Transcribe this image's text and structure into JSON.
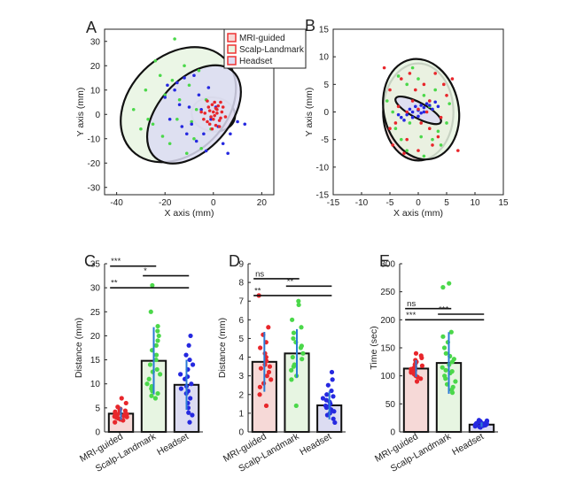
{
  "chart_data": [
    {
      "panel": "A",
      "type": "scatter",
      "xlabel": "X axis (mm)",
      "ylabel": "Y axis (mm)",
      "xlim": [
        -45,
        25
      ],
      "ylim": [
        -33,
        35
      ],
      "xticks": [
        -40,
        -20,
        0,
        20
      ],
      "yticks": [
        -30,
        -20,
        -10,
        0,
        10,
        20,
        30
      ],
      "legend": {
        "position": "top-right",
        "entries": [
          "MRI-guided",
          "Scalp-Landmark",
          "Headset"
        ]
      },
      "series": [
        {
          "name": "MRI-guided",
          "color": "#e8262b",
          "fill": "#f6d9d7",
          "ellipse": {
            "cx": 0,
            "cy": 0,
            "rx": 9,
            "ry": 7,
            "angle": 8
          },
          "points": [
            [
              0.5,
              -0.5
            ],
            [
              1.5,
              2
            ],
            [
              -1.5,
              1.5
            ],
            [
              2.5,
              -2.5
            ],
            [
              -2.5,
              -3
            ],
            [
              3.5,
              1
            ],
            [
              -0.5,
              4
            ],
            [
              1,
              -4.5
            ],
            [
              -3.5,
              0.5
            ],
            [
              2,
              3.5
            ],
            [
              0,
              -2
            ],
            [
              -1,
              -1
            ],
            [
              3,
              -1.5
            ],
            [
              -2,
              3
            ],
            [
              1.5,
              0.5
            ],
            [
              4,
              3
            ],
            [
              -4,
              -2
            ],
            [
              0.5,
              5
            ],
            [
              2.5,
              -5
            ],
            [
              -1.5,
              -4
            ],
            [
              5,
              -1
            ],
            [
              -5,
              1
            ],
            [
              1,
              2.5
            ],
            [
              -0.5,
              -6
            ],
            [
              3,
              5
            ],
            [
              -2.5,
              5.5
            ],
            [
              0,
              1
            ]
          ]
        },
        {
          "name": "Scalp-Landmark",
          "color": "#4bd84a",
          "fill": "#e7f5e2",
          "ellipse": {
            "cx": -14.5,
            "cy": 4,
            "rx": 27,
            "ry": 20,
            "angle": -45
          },
          "points": [
            [
              -16,
              31
            ],
            [
              -28,
              10
            ],
            [
              -33,
              2
            ],
            [
              -25,
              -4
            ],
            [
              -22,
              16
            ],
            [
              -15,
              -2
            ],
            [
              -10,
              12
            ],
            [
              -8,
              -10
            ],
            [
              -20,
              8
            ],
            [
              -5,
              -14
            ],
            [
              -12,
              20
            ],
            [
              -30,
              -6
            ],
            [
              -18,
              -12
            ],
            [
              -6,
              18
            ],
            [
              -3,
              6
            ],
            [
              -24,
              22
            ],
            [
              -14,
              6
            ],
            [
              -9,
              -3
            ],
            [
              -27,
              -2
            ],
            [
              -21,
              -9
            ],
            [
              -11,
              -16
            ],
            [
              -1,
              -6
            ],
            [
              -17,
              14
            ],
            [
              -7,
              2
            ]
          ]
        },
        {
          "name": "Headset",
          "color": "#2528e0",
          "fill": "#dcdcf2",
          "ellipse": {
            "cx": -8,
            "cy": 0,
            "rx": 24,
            "ry": 14.5,
            "angle": -48
          },
          "points": [
            [
              -20,
              7
            ],
            [
              -16,
              10
            ],
            [
              -12,
              15
            ],
            [
              -9,
              -4
            ],
            [
              -6,
              8
            ],
            [
              -4,
              -8
            ],
            [
              -2,
              11
            ],
            [
              -14,
              4
            ],
            [
              -18,
              -2
            ],
            [
              -10,
              3
            ],
            [
              -7,
              -11
            ],
            [
              -3,
              -15
            ],
            [
              2,
              -5
            ],
            [
              4,
              -12
            ],
            [
              7,
              -8
            ],
            [
              10,
              -3
            ],
            [
              13,
              -4
            ],
            [
              -11,
              -8
            ],
            [
              -5,
              2
            ],
            [
              -15,
              13
            ],
            [
              -8,
              16
            ],
            [
              1,
              3
            ],
            [
              -13,
              -5
            ],
            [
              6,
              -16
            ],
            [
              -19,
              12
            ],
            [
              -1,
              -2
            ]
          ]
        }
      ]
    },
    {
      "panel": "B",
      "type": "scatter",
      "xlabel": "X axis (mm)",
      "ylabel": "Y axis (mm)",
      "xlim": [
        -15,
        15
      ],
      "ylim": [
        -15,
        15
      ],
      "xticks": [
        -15,
        -10,
        -5,
        0,
        5,
        10,
        15
      ],
      "yticks": [
        -15,
        -10,
        -5,
        0,
        5,
        10,
        15
      ],
      "series": [
        {
          "name": "MRI-guided",
          "color": "#e8262b",
          "fill": "#f6d9d7",
          "ellipse": {
            "cx": 0,
            "cy": 0,
            "rx": 6.2,
            "ry": 8.8,
            "angle": 0
          },
          "points": [
            [
              -5,
              4
            ],
            [
              -4,
              -2
            ],
            [
              -3,
              6
            ],
            [
              -2,
              -5
            ],
            [
              -1,
              2
            ],
            [
              0,
              -7
            ],
            [
              1,
              5
            ],
            [
              2,
              -3
            ],
            [
              3,
              7
            ],
            [
              4,
              -1
            ],
            [
              5,
              3
            ],
            [
              -4.5,
              -6
            ],
            [
              -2.5,
              -7.5
            ],
            [
              2.5,
              -6
            ],
            [
              4.5,
              5
            ],
            [
              -3.5,
              1
            ],
            [
              1.5,
              0
            ],
            [
              -0.5,
              4
            ],
            [
              3.5,
              -4.5
            ],
            [
              0.5,
              -2
            ],
            [
              -1.5,
              7
            ],
            [
              6,
              6
            ],
            [
              7,
              -7
            ],
            [
              -6,
              8
            ],
            [
              -5,
              -3
            ],
            [
              2,
              2
            ],
            [
              0,
              0.5
            ],
            [
              -2,
              0
            ]
          ]
        },
        {
          "name": "Scalp-Landmark",
          "color": "#4bd84a",
          "fill": "#e7f5e2",
          "ellipse": {
            "cx": 0.5,
            "cy": 0.5,
            "rx": 6.6,
            "ry": 9.2,
            "angle": -12
          },
          "points": [
            [
              -5.5,
              2
            ],
            [
              -3,
              -5
            ],
            [
              -1,
              8
            ],
            [
              1,
              -8
            ],
            [
              3,
              4
            ],
            [
              5,
              -2
            ],
            [
              4,
              -6
            ],
            [
              -2,
              5
            ],
            [
              2,
              1
            ],
            [
              -4,
              -3
            ],
            [
              0,
              6
            ],
            [
              -1.5,
              -2
            ],
            [
              3.5,
              -3.5
            ],
            [
              1,
              3
            ],
            [
              5.5,
              1.5
            ],
            [
              -3.5,
              6.5
            ],
            [
              -2,
              -7
            ],
            [
              2.5,
              -5
            ],
            [
              0.5,
              -4.5
            ],
            [
              -4.5,
              0
            ]
          ]
        },
        {
          "name": "Headset",
          "color": "#2528e0",
          "fill": "#dcdcf2",
          "ellipse": {
            "cx": 0,
            "cy": 0.3,
            "rx": 4.5,
            "ry": 1.4,
            "angle": 28
          },
          "points": [
            [
              -3,
              -1
            ],
            [
              -2,
              -0.5
            ],
            [
              -1,
              0
            ],
            [
              0,
              0.3
            ],
            [
              1,
              0.8
            ],
            [
              2,
              1.2
            ],
            [
              3,
              1.8
            ],
            [
              -2.5,
              -1.5
            ],
            [
              -1.5,
              0.5
            ],
            [
              0.5,
              -0.2
            ],
            [
              1.5,
              1.5
            ],
            [
              2.5,
              0.5
            ],
            [
              -0.5,
              1
            ],
            [
              0,
              -0.8
            ],
            [
              1,
              0
            ],
            [
              -1,
              -1
            ],
            [
              3.5,
              1
            ],
            [
              -3.5,
              -0.5
            ],
            [
              0.5,
              1.2
            ],
            [
              2,
              2
            ]
          ]
        }
      ]
    },
    {
      "panel": "C",
      "type": "bar",
      "ylabel": "Distance (mm)",
      "ylim": [
        0,
        35
      ],
      "yticks": [
        0,
        5,
        10,
        15,
        20,
        25,
        30,
        35
      ],
      "categories": [
        "MRI-guided",
        "Scalp-Landmark",
        "Headset"
      ],
      "values": [
        3.8,
        14.8,
        9.8
      ],
      "errors": [
        1.3,
        7.0,
        5.2
      ],
      "colors": [
        "#e8262b",
        "#4bd84a",
        "#2528e0"
      ],
      "fills": [
        "#f6d9d7",
        "#e7f5e2",
        "#dcdcf2"
      ],
      "points": [
        [
          2.0,
          2.4,
          2.8,
          3.0,
          3.1,
          3.3,
          3.5,
          3.6,
          3.7,
          3.9,
          4.0,
          4.2,
          4.4,
          4.6,
          4.8,
          5.2,
          6.0,
          7.0,
          3.2,
          2.6
        ],
        [
          7.0,
          7.5,
          8.0,
          8.5,
          9.0,
          10.0,
          11.0,
          12.0,
          13.0,
          14.0,
          15.0,
          16.0,
          17.0,
          18.0,
          19.0,
          20.0,
          21.0,
          22.0,
          25.0,
          30.5,
          9.5,
          12.5
        ],
        [
          2.0,
          3.5,
          5.0,
          6.0,
          7.0,
          8.0,
          8.5,
          9.0,
          9.5,
          10.0,
          11.0,
          12.0,
          13.0,
          14.0,
          15.0,
          16.0,
          18.0,
          20.0,
          4.0,
          11.5
        ]
      ],
      "significance": [
        {
          "from": 0,
          "to": 1,
          "label": "***",
          "y": 34.5
        },
        {
          "from": 1,
          "to": 2,
          "label": "*",
          "y": 32.5
        },
        {
          "from": 0,
          "to": 2,
          "label": "**",
          "y": 30.0
        }
      ]
    },
    {
      "panel": "D",
      "type": "bar",
      "ylabel": "Distance (mm)",
      "ylim": [
        0,
        9
      ],
      "yticks": [
        0,
        1,
        2,
        3,
        4,
        5,
        6,
        7,
        8,
        9
      ],
      "categories": [
        "MRI-guided",
        "Scalp-Landmark",
        "Headset"
      ],
      "values": [
        3.75,
        4.2,
        1.42
      ],
      "errors": [
        1.6,
        1.3,
        0.75
      ],
      "colors": [
        "#e8262b",
        "#4bd84a",
        "#2528e0"
      ],
      "fills": [
        "#f6d9d7",
        "#e7f5e2",
        "#dcdcf2"
      ],
      "points": [
        [
          1.4,
          2.0,
          2.4,
          2.8,
          3.0,
          3.2,
          3.4,
          3.6,
          3.8,
          4.0,
          4.2,
          4.5,
          4.8,
          5.2,
          5.6,
          7.3,
          2.6,
          3.5
        ],
        [
          1.4,
          2.8,
          3.0,
          3.3,
          3.6,
          3.9,
          4.2,
          4.5,
          4.8,
          5.0,
          5.3,
          5.6,
          6.0,
          6.8,
          7.0,
          3.5,
          4.0,
          4.6
        ],
        [
          0.5,
          0.7,
          0.9,
          1.0,
          1.1,
          1.2,
          1.3,
          1.4,
          1.5,
          1.6,
          1.7,
          1.8,
          1.9,
          2.0,
          2.2,
          2.5,
          2.8,
          3.2,
          1.35
        ]
      ],
      "significance": [
        {
          "from": 0,
          "to": 1,
          "label": "ns",
          "y": 8.2
        },
        {
          "from": 1,
          "to": 2,
          "label": "**",
          "y": 7.8
        },
        {
          "from": 0,
          "to": 2,
          "label": "**",
          "y": 7.3
        }
      ]
    },
    {
      "panel": "E",
      "type": "bar",
      "ylabel": "Time (sec)",
      "ylim": [
        0,
        300
      ],
      "yticks": [
        0,
        50,
        100,
        150,
        200,
        250,
        300
      ],
      "categories": [
        "MRI-guided",
        "Scalp-Landmark",
        "Headset"
      ],
      "values": [
        113,
        123,
        13
      ],
      "errors": [
        15,
        55,
        4
      ],
      "colors": [
        "#e8262b",
        "#4bd84a",
        "#2528e0"
      ],
      "fills": [
        "#f6d9d7",
        "#e7f5e2",
        "#dcdcf2"
      ],
      "points": [
        [
          90,
          95,
          100,
          103,
          106,
          108,
          110,
          112,
          114,
          116,
          118,
          120,
          122,
          125,
          128,
          132,
          136,
          140,
          98,
          111
        ],
        [
          70,
          75,
          80,
          85,
          90,
          95,
          100,
          105,
          110,
          115,
          120,
          125,
          130,
          140,
          150,
          160,
          170,
          178,
          258,
          265,
          108,
          135
        ],
        [
          8,
          9,
          10,
          11,
          12,
          12,
          13,
          13,
          14,
          14,
          15,
          15,
          16,
          17,
          18,
          19,
          20,
          21,
          11,
          16
        ]
      ],
      "significance": [
        {
          "from": 0,
          "to": 1,
          "label": "ns",
          "y": 220
        },
        {
          "from": 1,
          "to": 2,
          "label": "***",
          "y": 210
        },
        {
          "from": 0,
          "to": 2,
          "label": "***",
          "y": 200
        }
      ]
    }
  ]
}
